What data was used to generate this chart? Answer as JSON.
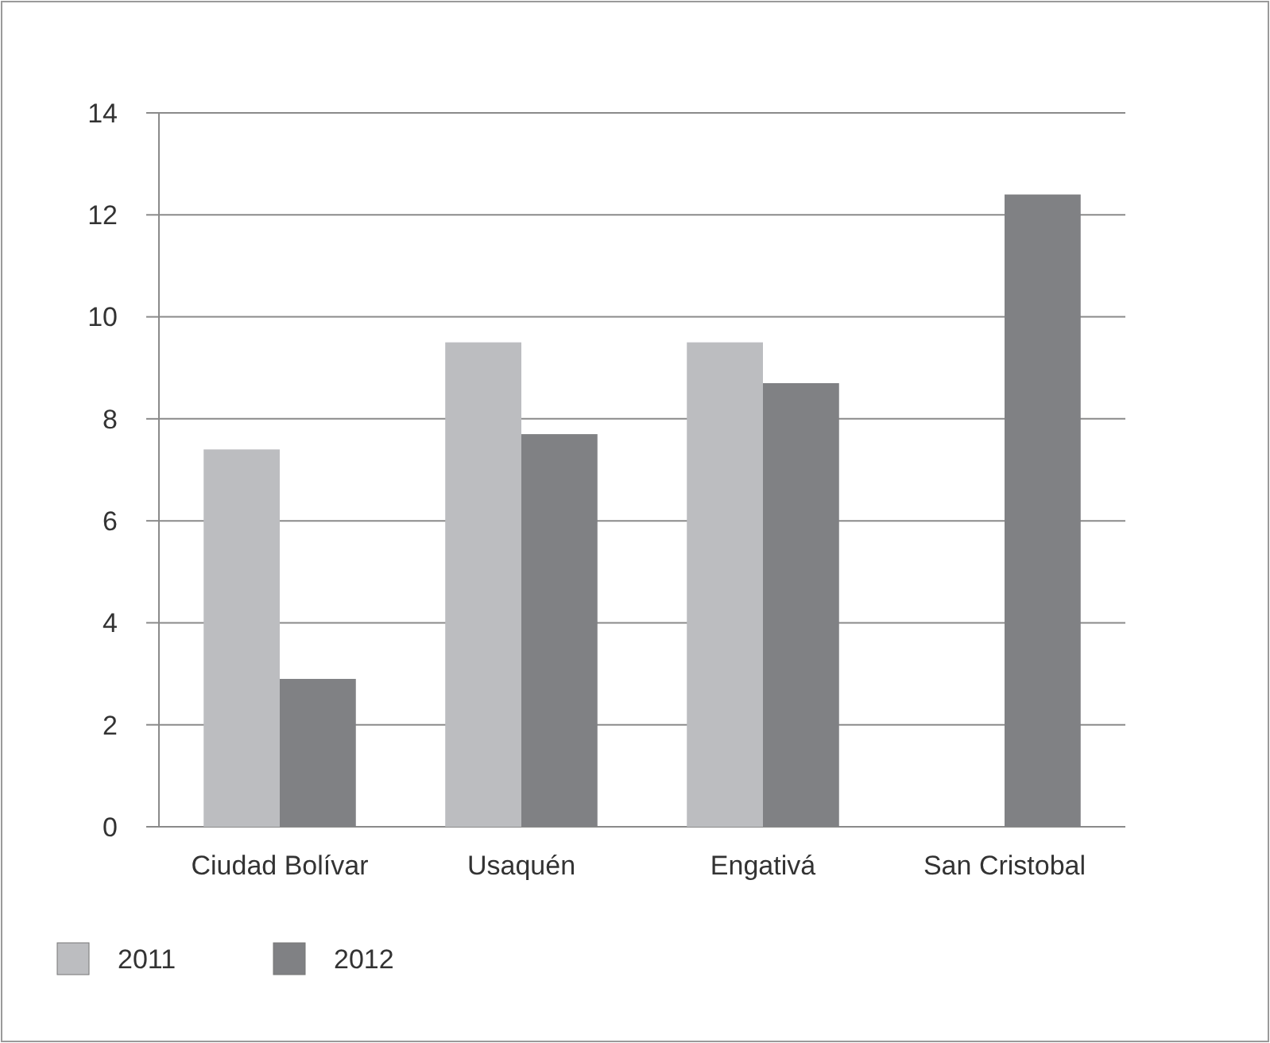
{
  "chart_data": {
    "type": "bar",
    "categories": [
      "Ciudad Bolívar",
      "Usaquén",
      "Engativá",
      "San Cristobal"
    ],
    "series": [
      {
        "name": "2011",
        "color": "#bcbdc0",
        "values": [
          7.4,
          9.5,
          9.5,
          null
        ]
      },
      {
        "name": "2012",
        "color": "#808184",
        "values": [
          2.9,
          7.7,
          8.7,
          12.4
        ]
      }
    ],
    "ylim": [
      0,
      14
    ],
    "yticks": [
      0,
      2,
      4,
      6,
      8,
      10,
      12,
      14
    ],
    "grid": "y",
    "legend": "bottom left"
  }
}
